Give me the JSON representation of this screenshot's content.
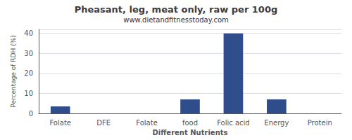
{
  "chart_data": {
    "type": "bar",
    "title": "Pheasant, leg, meat only, raw per 100g",
    "subtitle": "www.dietandfitnesstoday.com",
    "xlabel": "Different Nutrients",
    "ylabel": "Percentage of RDH (%)",
    "categories": [
      "Folate",
      "DFE",
      "Folate",
      "food",
      "Folic acid",
      "Energy",
      "Protein"
    ],
    "values": [
      3.5,
      0,
      0,
      7,
      40,
      7,
      0
    ],
    "color": "#2e4d8a",
    "ylim": [
      0,
      42
    ],
    "yticks": [
      0,
      10,
      20,
      30,
      40
    ],
    "grid": true
  }
}
